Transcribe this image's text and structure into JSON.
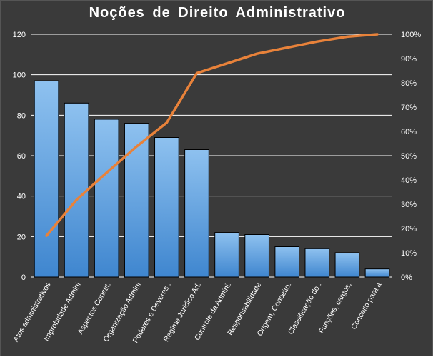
{
  "chart_data": {
    "type": "bar",
    "title": "Noções de Direito Administrativo",
    "categories": [
      "Atos administrativos",
      "Improbidade Admini",
      "Aspectos Constit.",
      "Organização Admini",
      "Poderes e Deveres .",
      "Regime Jurídico Ad.",
      "Controle da Admini.",
      "Responsabilidade",
      "Origem, Conceito.",
      "Classificação do .",
      "Funções, cargos,",
      "Conceito para a"
    ],
    "series": [
      {
        "type": "bar",
        "axis": "left",
        "values": [
          97,
          86,
          78,
          76,
          69,
          63,
          22,
          21,
          15,
          14,
          12,
          4
        ]
      },
      {
        "type": "line",
        "axis": "right",
        "values": [
          17,
          31.8,
          43,
          53.8,
          63.6,
          84,
          88,
          92,
          94.5,
          97,
          99,
          100
        ]
      }
    ],
    "ylim": [
      0,
      120
    ],
    "y_ticks": [
      "0",
      "20",
      "40",
      "60",
      "80",
      "100",
      "120"
    ],
    "y2lim": [
      0,
      100
    ],
    "y2_ticks": [
      "0%",
      "10%",
      "20%",
      "30%",
      "40%",
      "50%",
      "60%",
      "70%",
      "80%",
      "90%",
      "100%"
    ],
    "grid": true,
    "legend": "none",
    "colors": {
      "background": "#3a3a3a",
      "bar_fill_top": "#8ec1ef",
      "bar_fill_bottom": "#3f86cf",
      "bar_stroke": "#000000",
      "line": "#e8823a",
      "grid": "#ffffff",
      "text": "#ffffff"
    }
  }
}
